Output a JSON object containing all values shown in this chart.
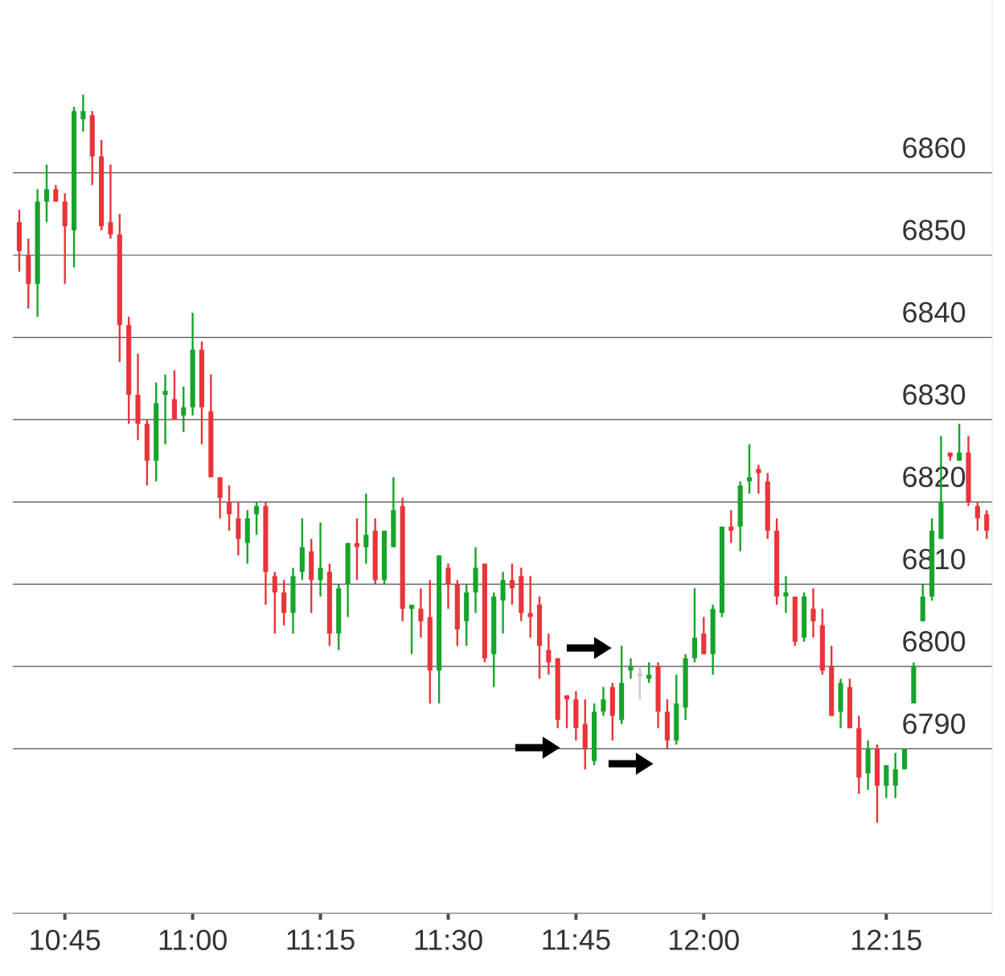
{
  "chart_data": {
    "type": "candlestick",
    "categories": [
      null,
      null,
      null,
      null,
      null,
      "10:45",
      null,
      null,
      null,
      null,
      null,
      null,
      null,
      null,
      null,
      null,
      null,
      null,
      null,
      "11:00",
      null,
      null,
      null,
      null,
      null,
      null,
      null,
      null,
      null,
      null,
      null,
      null,
      null,
      "11:15",
      null,
      null,
      null,
      null,
      null,
      null,
      null,
      null,
      null,
      null,
      null,
      null,
      null,
      "11:30",
      null,
      null,
      null,
      null,
      null,
      null,
      null,
      null,
      null,
      null,
      null,
      null,
      null,
      "11:45",
      null,
      null,
      null,
      null,
      null,
      null,
      null,
      null,
      null,
      null,
      null,
      null,
      null,
      "12:00",
      null,
      null,
      null,
      null,
      null,
      null,
      null,
      null,
      null,
      null,
      null,
      null,
      null,
      null,
      null,
      null,
      null,
      null,
      null,
      "12:15",
      null,
      null,
      null,
      null,
      null,
      null,
      null,
      null,
      null,
      null,
      null
    ],
    "ohlc": [
      [
        6854,
        6855.5,
        6848,
        6850.5
      ],
      [
        6850,
        6852,
        6843.5,
        6846.5
      ],
      [
        6846.5,
        6858,
        6842.5,
        6856.5
      ],
      [
        6856.5,
        6861,
        6854,
        6858
      ],
      [
        6858,
        6858.5,
        6856.5,
        6856.5
      ],
      [
        6856.5,
        6857.5,
        6846.5,
        6853.5
      ],
      [
        6853,
        6868,
        6848.5,
        6867.5
      ],
      [
        6866.5,
        6869.5,
        6865,
        6867.5
      ],
      [
        6867,
        6867.5,
        6858.5,
        6862
      ],
      [
        6862,
        6864,
        6853,
        6853.5
      ],
      [
        6854,
        6861,
        6852,
        6852.5
      ],
      [
        6852.5,
        6855,
        6837,
        6841.5
      ],
      [
        6841.5,
        6842.5,
        6829.5,
        6833
      ],
      [
        6833,
        6838,
        6827.5,
        6829.5
      ],
      [
        6829.5,
        6830,
        6822,
        6825
      ],
      [
        6825,
        6834.5,
        6822.5,
        6832
      ],
      [
        6833,
        6835.5,
        6827,
        6833.5
      ],
      [
        6832.5,
        6836,
        6830,
        6830
      ],
      [
        6830.5,
        6834,
        6828.5,
        6831.5
      ],
      [
        6831.5,
        6843,
        6830.5,
        6838.5
      ],
      [
        6838.5,
        6839.5,
        6827,
        6831.5
      ],
      [
        6831,
        6835.5,
        6823,
        6823
      ],
      [
        6823,
        6823,
        6818,
        6820.5
      ],
      [
        6820,
        6822,
        6816.5,
        6818.5
      ],
      [
        6818,
        6820,
        6813.5,
        6815.5
      ],
      [
        6815,
        6819,
        6812.5,
        6818
      ],
      [
        6818.5,
        6820,
        6816,
        6819.5
      ],
      [
        6819.5,
        6820,
        6807.5,
        6811.5
      ],
      [
        6811,
        6811.5,
        6804,
        6809
      ],
      [
        6809,
        6810.5,
        6805,
        6806.5
      ],
      [
        6806.5,
        6812,
        6804,
        6811
      ],
      [
        6811.5,
        6818,
        6810.5,
        6814.5
      ],
      [
        6814,
        6815.5,
        6806.5,
        6810.5
      ],
      [
        6810.5,
        6817.5,
        6808.5,
        6812
      ],
      [
        6811.5,
        6812.5,
        6802.5,
        6804
      ],
      [
        6804,
        6810,
        6802,
        6809.5
      ],
      [
        6810,
        6815,
        6806,
        6815
      ],
      [
        6815,
        6818,
        6810.5,
        6814.5
      ],
      [
        6814.5,
        6821,
        6812.5,
        6816
      ],
      [
        6816.5,
        6818,
        6810,
        6810.5
      ],
      [
        6810.5,
        6816.5,
        6810,
        6816.5
      ],
      [
        6814.5,
        6823,
        6814.5,
        6819
      ],
      [
        6819.5,
        6820.5,
        6805.5,
        6807
      ],
      [
        6807,
        6807.5,
        6801.5,
        6807.5
      ],
      [
        6807,
        6809.5,
        6803.5,
        6805.5
      ],
      [
        6806,
        6810.5,
        6795.5,
        6799.5
      ],
      [
        6799.5,
        6813.5,
        6795.5,
        6813.5
      ],
      [
        6812,
        6812.5,
        6807,
        6810
      ],
      [
        6810,
        6810.5,
        6802.5,
        6804.5
      ],
      [
        6805.5,
        6810,
        6802.5,
        6809
      ],
      [
        6809,
        6814.5,
        6806.5,
        6812
      ],
      [
        6812.5,
        6812.5,
        6800.5,
        6801
      ],
      [
        6801.5,
        6809,
        6797.5,
        6808.5
      ],
      [
        6808,
        6811.5,
        6804,
        6810.5
      ],
      [
        6810.5,
        6812.5,
        6807.5,
        6809.5
      ],
      [
        6811,
        6812,
        6805.5,
        6806.5
      ],
      [
        6806.5,
        6811,
        6803.5,
        6806
      ],
      [
        6807.5,
        6808.5,
        6798.5,
        6802.5
      ],
      [
        6802,
        6804,
        6799,
        6800.5
      ],
      [
        6801,
        6801,
        6792.5,
        6793.5
      ],
      [
        6796.5,
        6796.5,
        6792.5,
        6796
      ],
      [
        6796,
        6797,
        6791,
        6792.5
      ],
      [
        6793,
        6796,
        6787.5,
        6790
      ],
      [
        6788.5,
        6795.5,
        6788,
        6794.5
      ],
      [
        6794.5,
        6797.5,
        6794,
        6796
      ],
      [
        6797.5,
        6798,
        6791,
        6794
      ],
      [
        6793.5,
        6802.5,
        6793,
        6798
      ],
      [
        6799.5,
        6801,
        6798.5,
        6800
      ],
      [
        6799,
        6800,
        6796,
        6799
      ],
      [
        6798.5,
        6800.5,
        6798,
        6799
      ],
      [
        6800,
        6800.5,
        6792.5,
        6794.5
      ],
      [
        6794.5,
        6796,
        6790,
        6791
      ],
      [
        6791,
        6799,
        6790.5,
        6795.5
      ],
      [
        6795,
        6801.5,
        6793.5,
        6801
      ],
      [
        6801,
        6809.5,
        6800.5,
        6803.5
      ],
      [
        6804,
        6806,
        6801.5,
        6801.5
      ],
      [
        6801.5,
        6807.5,
        6799,
        6807
      ],
      [
        6806.5,
        6817,
        6806,
        6817
      ],
      [
        6817,
        6819,
        6815,
        6816.5
      ],
      [
        6817,
        6822.5,
        6814,
        6822
      ],
      [
        6822.5,
        6827,
        6821,
        6823
      ],
      [
        6824,
        6824.5,
        6821,
        6823.5
      ],
      [
        6822.5,
        6823.5,
        6815.5,
        6816.5
      ],
      [
        6816.5,
        6818,
        6807.5,
        6808.5
      ],
      [
        6808.5,
        6811,
        6806.5,
        6809
      ],
      [
        6808.5,
        6808.5,
        6802.5,
        6803
      ],
      [
        6803.5,
        6809,
        6803,
        6808.5
      ],
      [
        6807,
        6809.5,
        6803.5,
        6805.5
      ],
      [
        6805,
        6807,
        6799,
        6799.5
      ],
      [
        6800,
        6802.5,
        6794,
        6794
      ],
      [
        6794.5,
        6798.5,
        6792.5,
        6798
      ],
      [
        6797.5,
        6798.5,
        6792.5,
        6792.5
      ],
      [
        6792.5,
        6794,
        6784.5,
        6786.5
      ],
      [
        6787,
        6791,
        6785,
        6790
      ],
      [
        6790,
        6790.5,
        6781,
        6785.5
      ],
      [
        6785.5,
        6788,
        6784,
        6788
      ],
      [
        6785.5,
        6789.5,
        6784,
        6787.5
      ],
      [
        6787.5,
        6790,
        6787.5,
        6790
      ],
      [
        6795.5,
        6800.5,
        6795.5,
        6800
      ],
      [
        6805.5,
        6810,
        6805.5,
        6808.5
      ],
      [
        6808.5,
        6818,
        6808,
        6816.5
      ],
      [
        6815.5,
        6828,
        6815.5,
        6820
      ],
      [
        6826,
        6826,
        6825,
        6825.5
      ],
      [
        6825,
        6829.5,
        6825,
        6826
      ],
      [
        6826,
        6828,
        6819.5,
        6820
      ],
      [
        6819.5,
        6820,
        6816.5,
        6818
      ],
      [
        6818.5,
        6819,
        6815.5,
        6816.5
      ]
    ],
    "colors": [
      "#e8343a",
      "#e8343a",
      "#16a42a",
      "#16a42a",
      "#e8343a",
      "#e8343a",
      "#16a42a",
      "#16a42a",
      "#e8343a",
      "#e8343a",
      "#e8343a",
      "#e8343a",
      "#e8343a",
      "#e8343a",
      "#e8343a",
      "#16a42a",
      "#16a42a",
      "#e8343a",
      "#16a42a",
      "#16a42a",
      "#e8343a",
      "#e8343a",
      "#e8343a",
      "#e8343a",
      "#e8343a",
      "#16a42a",
      "#16a42a",
      "#e8343a",
      "#e8343a",
      "#e8343a",
      "#16a42a",
      "#16a42a",
      "#e8343a",
      "#16a42a",
      "#e8343a",
      "#16a42a",
      "#16a42a",
      "#e8343a",
      "#16a42a",
      "#e8343a",
      "#16a42a",
      "#16a42a",
      "#e8343a",
      "#16a42a",
      "#e8343a",
      "#e8343a",
      "#16a42a",
      "#e8343a",
      "#e8343a",
      "#16a42a",
      "#16a42a",
      "#e8343a",
      "#16a42a",
      "#16a42a",
      "#e8343a",
      "#e8343a",
      "#e8343a",
      "#e8343a",
      "#e8343a",
      "#e8343a",
      "#e8343a",
      "#e8343a",
      "#e8343a",
      "#16a42a",
      "#16a42a",
      "#e8343a",
      "#16a42a",
      "#16a42a",
      "#c8c8c8",
      "#16a42a",
      "#e8343a",
      "#e8343a",
      "#16a42a",
      "#16a42a",
      "#16a42a",
      "#e8343a",
      "#16a42a",
      "#16a42a",
      "#e8343a",
      "#16a42a",
      "#16a42a",
      "#e8343a",
      "#e8343a",
      "#e8343a",
      "#16a42a",
      "#e8343a",
      "#16a42a",
      "#e8343a",
      "#e8343a",
      "#e8343a",
      "#16a42a",
      "#e8343a",
      "#e8343a",
      "#16a42a",
      "#e8343a",
      "#16a42a",
      "#16a42a",
      "#16a42a",
      "#16a42a",
      "#16a42a",
      "#16a42a",
      "#16a42a",
      "#e8343a",
      "#16a42a",
      "#e8343a",
      "#e8343a",
      "#e8343a"
    ],
    "ylim": [
      6770,
      6881
    ],
    "yticks": [
      6790,
      6800,
      6810,
      6820,
      6830,
      6840,
      6850,
      6860
    ],
    "grid": "y"
  }
}
